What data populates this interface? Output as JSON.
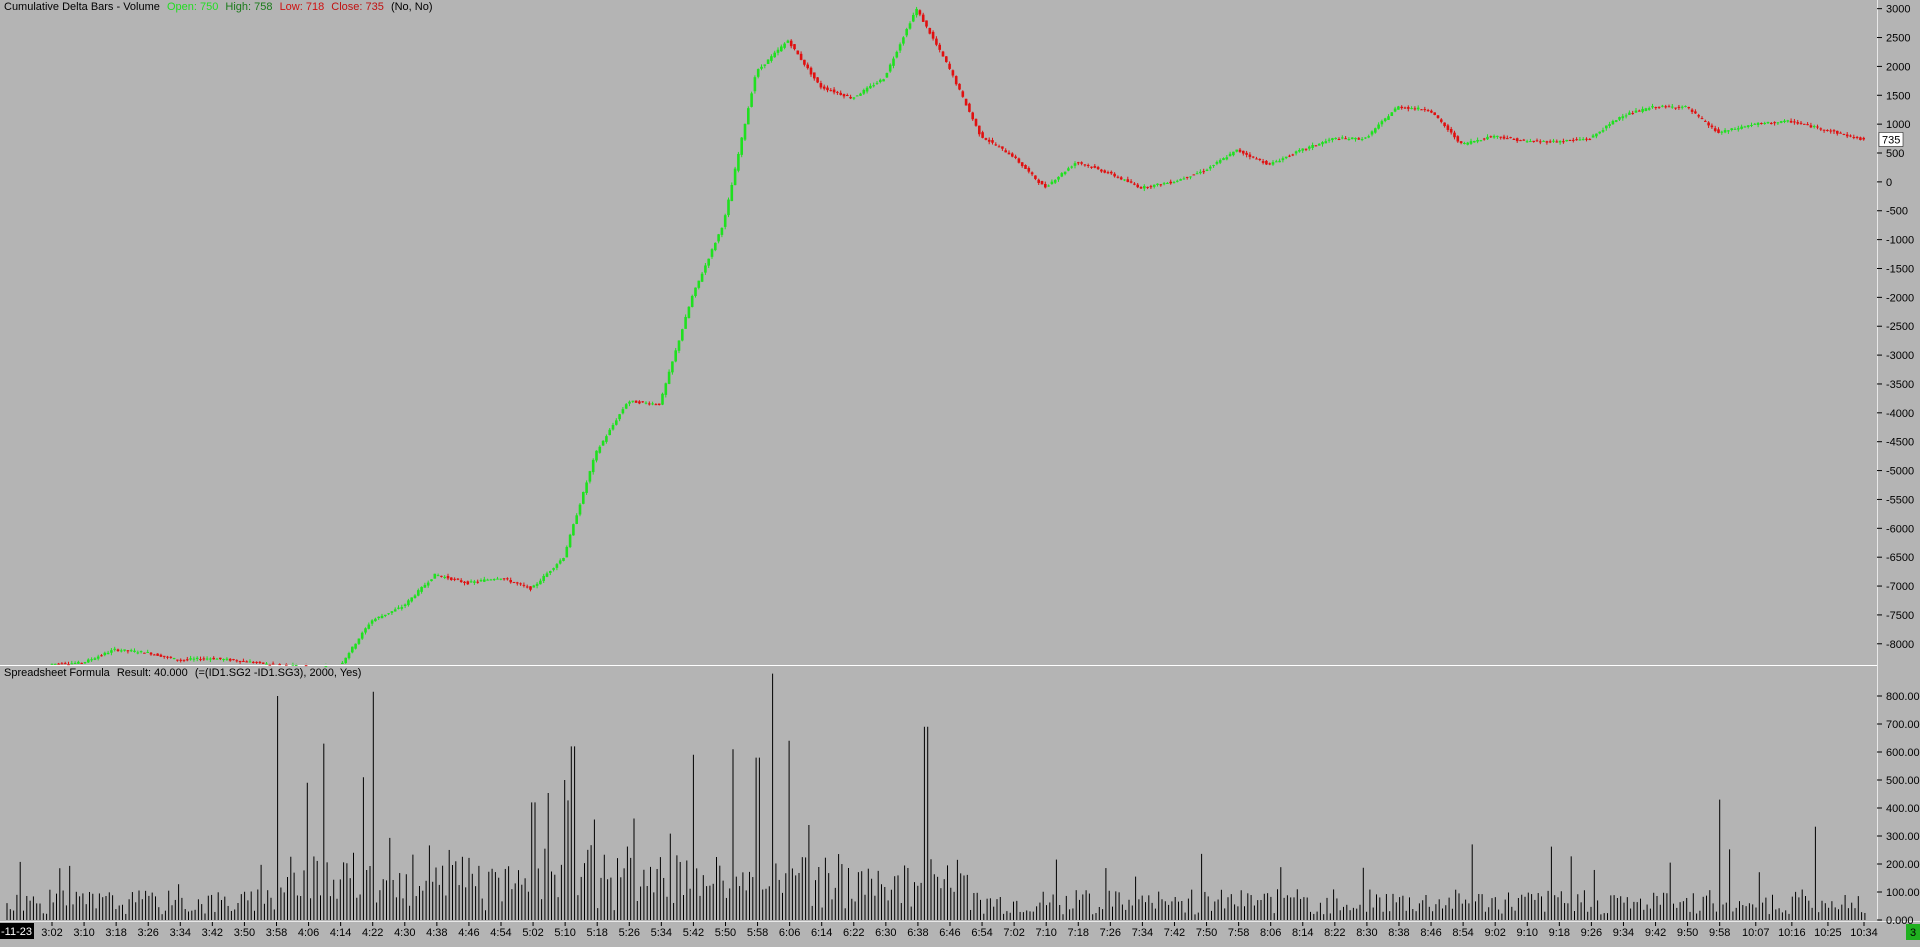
{
  "top_panel": {
    "study_name": "Cumulative Delta Bars - Volume",
    "open_text": "Open: 750",
    "high_text": "High: 758",
    "low_text": "Low: 718",
    "close_text": "Close: 735",
    "flags_text": "(No, No)",
    "current_value_label": "735",
    "colors": {
      "up": "#1fe01f",
      "down": "#e01010",
      "open_label": "#22dd22",
      "high_label": "#1a8a1a",
      "low_label": "#d01010",
      "close_label": "#c01010"
    }
  },
  "bottom_panel": {
    "study_name": "Spreadsheet Formula",
    "result_text": "Result: 40.000",
    "formula_text": "(=(ID1.SG2 -ID1.SG3), 2000, Yes)"
  },
  "x_axis": {
    "date_label": "-11-23",
    "time_labels": [
      "3:02",
      "3:10",
      "3:18",
      "3:26",
      "3:34",
      "3:42",
      "3:50",
      "3:58",
      "4:06",
      "4:14",
      "4:22",
      "4:30",
      "4:38",
      "4:46",
      "4:54",
      "5:02",
      "5:10",
      "5:18",
      "5:26",
      "5:34",
      "5:42",
      "5:50",
      "5:58",
      "6:06",
      "6:14",
      "6:22",
      "6:30",
      "6:38",
      "6:46",
      "6:54",
      "7:02",
      "7:10",
      "7:18",
      "7:26",
      "7:34",
      "7:42",
      "7:50",
      "7:58",
      "8:06",
      "8:14",
      "8:22",
      "8:30",
      "8:38",
      "8:46",
      "8:54",
      "9:02",
      "9:10",
      "9:18",
      "9:26",
      "9:34",
      "9:42",
      "9:50",
      "9:58",
      "10:07",
      "10:16",
      "10:25",
      "10:34"
    ],
    "corner_badge": "3"
  },
  "chart_data": [
    {
      "type": "candlestick",
      "title": "Cumulative Delta Bars - Volume",
      "ylim": [
        -8350,
        3150
      ],
      "y_ticks": [
        3000,
        2500,
        2000,
        1500,
        1000,
        500,
        0,
        -500,
        -1000,
        -1500,
        -2000,
        -2500,
        -3000,
        -3500,
        -4000,
        -4500,
        -5000,
        -5500,
        -6000,
        -6500,
        -7000,
        -7500,
        -8000
      ],
      "y_tick_labels": [
        "3000",
        "2500",
        "2000",
        "1500",
        "1000",
        "500",
        "0",
        "-500",
        "-1000",
        "-1500",
        "-2000",
        "-2500",
        "-3000",
        "-3500",
        "-4000",
        "-4500",
        "-5000",
        "-5500",
        "-6000",
        "-6500",
        "-7000",
        "-7500",
        "-8000"
      ],
      "last_value": 735,
      "path_keypoints": [
        {
          "time": "3:02",
          "value": -8350
        },
        {
          "time": "3:10",
          "value": -8330
        },
        {
          "time": "3:18",
          "value": -8100
        },
        {
          "time": "3:26",
          "value": -8150
        },
        {
          "time": "3:34",
          "value": -8280
        },
        {
          "time": "3:42",
          "value": -8250
        },
        {
          "time": "3:50",
          "value": -8300
        },
        {
          "time": "3:58",
          "value": -8370
        },
        {
          "time": "4:14",
          "value": -8400
        },
        {
          "time": "4:22",
          "value": -7600
        },
        {
          "time": "4:30",
          "value": -7350
        },
        {
          "time": "4:38",
          "value": -6800
        },
        {
          "time": "4:46",
          "value": -6950
        },
        {
          "time": "4:54",
          "value": -6850
        },
        {
          "time": "5:02",
          "value": -7050
        },
        {
          "time": "5:10",
          "value": -6500
        },
        {
          "time": "5:18",
          "value": -4700
        },
        {
          "time": "5:26",
          "value": -3800
        },
        {
          "time": "5:34",
          "value": -3850
        },
        {
          "time": "5:42",
          "value": -2000
        },
        {
          "time": "5:50",
          "value": -700
        },
        {
          "time": "5:58",
          "value": 1900
        },
        {
          "time": "6:06",
          "value": 2450
        },
        {
          "time": "6:14",
          "value": 1650
        },
        {
          "time": "6:22",
          "value": 1450
        },
        {
          "time": "6:30",
          "value": 1800
        },
        {
          "time": "6:38",
          "value": 3000
        },
        {
          "time": "6:46",
          "value": 2000
        },
        {
          "time": "6:54",
          "value": 800
        },
        {
          "time": "7:02",
          "value": 450
        },
        {
          "time": "7:10",
          "value": -100
        },
        {
          "time": "7:18",
          "value": 350
        },
        {
          "time": "7:26",
          "value": 150
        },
        {
          "time": "7:34",
          "value": -100
        },
        {
          "time": "7:42",
          "value": 0
        },
        {
          "time": "7:50",
          "value": 200
        },
        {
          "time": "7:58",
          "value": 550
        },
        {
          "time": "8:06",
          "value": 300
        },
        {
          "time": "8:14",
          "value": 550
        },
        {
          "time": "8:22",
          "value": 750
        },
        {
          "time": "8:30",
          "value": 750
        },
        {
          "time": "8:38",
          "value": 1300
        },
        {
          "time": "8:46",
          "value": 1250
        },
        {
          "time": "8:54",
          "value": 650
        },
        {
          "time": "9:02",
          "value": 800
        },
        {
          "time": "9:10",
          "value": 700
        },
        {
          "time": "9:18",
          "value": 700
        },
        {
          "time": "9:26",
          "value": 750
        },
        {
          "time": "9:34",
          "value": 1150
        },
        {
          "time": "9:42",
          "value": 1300
        },
        {
          "time": "9:50",
          "value": 1300
        },
        {
          "time": "9:58",
          "value": 850
        },
        {
          "time": "10:07",
          "value": 1000
        },
        {
          "time": "10:16",
          "value": 1050
        },
        {
          "time": "10:25",
          "value": 900
        },
        {
          "time": "10:34",
          "value": 735
        }
      ]
    },
    {
      "type": "bar",
      "title": "Spreadsheet Formula",
      "ylim": [
        0,
        900
      ],
      "y_ticks": [
        0,
        100,
        200,
        300,
        400,
        500,
        600,
        700,
        800
      ],
      "y_tick_labels": [
        "0.000",
        "100.000",
        "200.000",
        "300.000",
        "400.000",
        "500.000",
        "600.000",
        "700.000",
        "800.000"
      ],
      "last_value": 40,
      "peaks": [
        {
          "time": "3:58",
          "value": 800
        },
        {
          "time": "4:06",
          "value": 490
        },
        {
          "time": "4:10",
          "value": 630
        },
        {
          "time": "4:20",
          "value": 510
        },
        {
          "time": "4:22",
          "value": 815
        },
        {
          "time": "5:02",
          "value": 420
        },
        {
          "time": "5:10",
          "value": 500
        },
        {
          "time": "5:12",
          "value": 620
        },
        {
          "time": "5:42",
          "value": 590
        },
        {
          "time": "5:52",
          "value": 610
        },
        {
          "time": "5:58",
          "value": 580
        },
        {
          "time": "6:02",
          "value": 880
        },
        {
          "time": "6:06",
          "value": 640
        },
        {
          "time": "6:40",
          "value": 690
        },
        {
          "time": "8:56",
          "value": 270
        },
        {
          "time": "9:58",
          "value": 430
        }
      ]
    }
  ]
}
